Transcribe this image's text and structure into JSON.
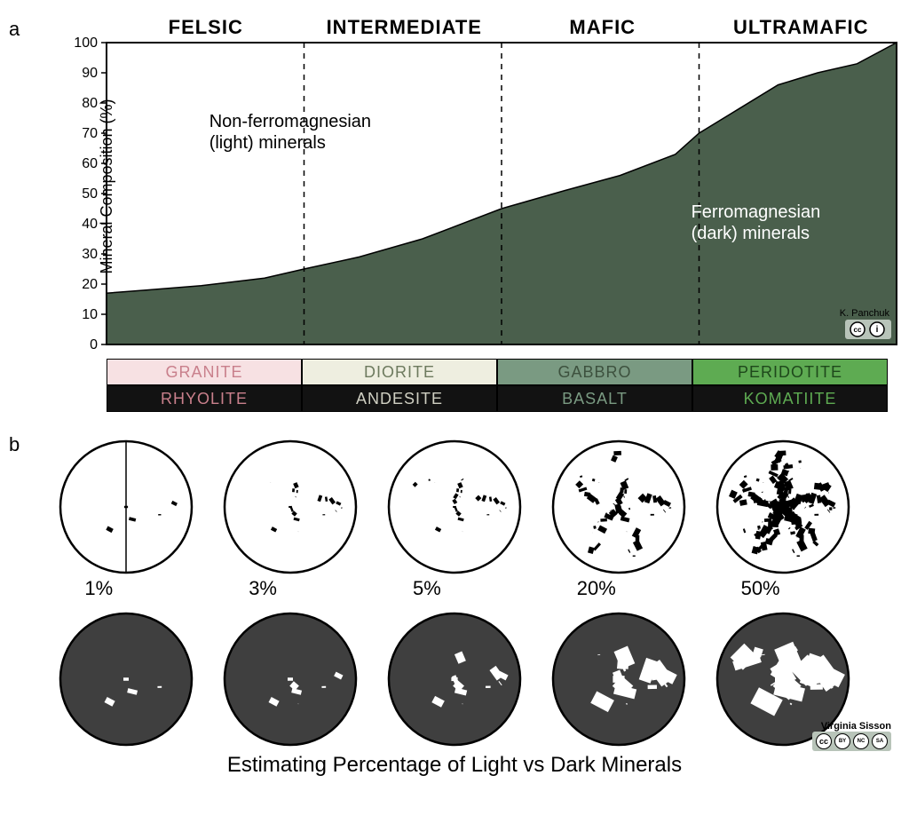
{
  "panel_a": {
    "label": "a",
    "type": "area",
    "headers": [
      "FELSIC",
      "INTERMEDIATE",
      "MAFIC",
      "ULTRAMAFIC"
    ],
    "ylabel": "Mineral Composition (%)",
    "ylim": [
      0,
      100
    ],
    "ytick_step": 10,
    "xlim": [
      0,
      100
    ],
    "divider_x": [
      25,
      50,
      75
    ],
    "curve": [
      {
        "x": 0,
        "y": 17
      },
      {
        "x": 5,
        "y": 18
      },
      {
        "x": 12,
        "y": 19.5
      },
      {
        "x": 20,
        "y": 22
      },
      {
        "x": 25,
        "y": 25
      },
      {
        "x": 32,
        "y": 29
      },
      {
        "x": 40,
        "y": 35
      },
      {
        "x": 50,
        "y": 45
      },
      {
        "x": 58,
        "y": 51
      },
      {
        "x": 65,
        "y": 56
      },
      {
        "x": 72,
        "y": 63
      },
      {
        "x": 75,
        "y": 70
      },
      {
        "x": 80,
        "y": 78
      },
      {
        "x": 85,
        "y": 86
      },
      {
        "x": 90,
        "y": 90
      },
      {
        "x": 95,
        "y": 93
      },
      {
        "x": 100,
        "y": 100
      }
    ],
    "region_fill": "#4a5f4c",
    "light_region_label": "Non-ferromagnesian\n(light) minerals",
    "dark_region_label": "Ferromagnesian\n(dark) minerals",
    "dark_label_color": "#ffffff",
    "light_label_color": "#000000",
    "label_fontsize": 20,
    "background_color": "#ffffff",
    "axis_color": "#000000",
    "divider_dash": "6,6",
    "attribution": "K. Panchuk",
    "rock_rows": [
      {
        "bg": [
          "#f7e1e3",
          "#eeeee0",
          "#7a9a82",
          "#5eab52"
        ],
        "text_color": [
          "#c9808c",
          "#6d7a5e",
          "#3d513e",
          "#1e481b"
        ],
        "cells": [
          "GRANITE",
          "DIORITE",
          "GABBRO",
          "PERIDOTITE"
        ]
      },
      {
        "bg": [
          "#121212",
          "#121212",
          "#121212",
          "#121212"
        ],
        "text_color": [
          "#c9808c",
          "#cfcfc2",
          "#7a9a82",
          "#5eab52"
        ],
        "cells": [
          "RHYOLITE",
          "ANDESITE",
          "BASALT",
          "KOMATIITE"
        ]
      }
    ]
  },
  "panel_b": {
    "label": "b",
    "type": "infographic",
    "circle_radius": 74,
    "circle_stroke": "#000000",
    "light_bg": "#ffffff",
    "dark_bg": "#3f3f3f",
    "percentages": [
      "1%",
      "3%",
      "5%",
      "20%",
      "50%"
    ],
    "flake_counts": [
      6,
      22,
      30,
      60,
      180
    ],
    "flake_size": [
      7,
      6,
      6,
      9,
      10
    ],
    "dark_row_flake_counts": [
      5,
      10,
      14,
      22,
      32
    ],
    "dark_row_flake_size": [
      10,
      10,
      12,
      22,
      30
    ],
    "caption": "Estimating Percentage of Light vs Dark Minerals",
    "attribution": "Virginia Sisson",
    "cc_labels": [
      "cc",
      "BY",
      "NC",
      "SA"
    ]
  }
}
